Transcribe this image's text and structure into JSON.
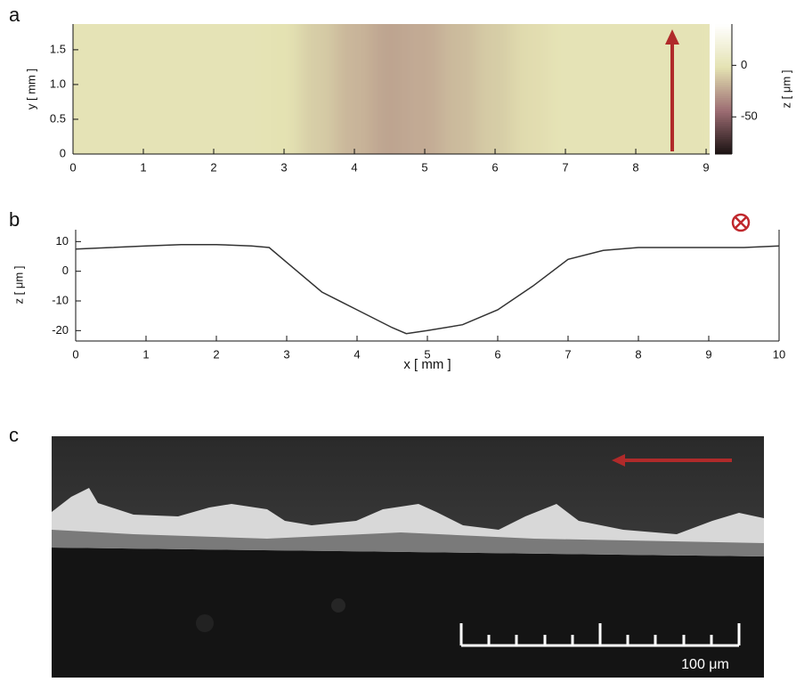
{
  "panel_labels": [
    "a",
    "b",
    "c"
  ],
  "chart_data": [
    {
      "type": "heatmap",
      "y_label": "y [ mm ]",
      "x": [
        0,
        0.5,
        1,
        1.5,
        2,
        2.5,
        3,
        3.5,
        4,
        4.5,
        5,
        5.5,
        6,
        6.5,
        7,
        7.5,
        8,
        8.5,
        9
      ],
      "values": [
        0,
        0,
        0,
        0,
        0,
        0,
        -2,
        -10,
        -18,
        -24,
        -22,
        -16,
        -10,
        -4,
        0,
        0,
        0,
        0,
        0
      ],
      "xlim": [
        0,
        9.05
      ],
      "xticks": [
        0,
        1,
        2,
        3,
        4,
        5,
        6,
        7,
        8,
        9
      ],
      "ylim": [
        0,
        1.87
      ],
      "yticks": [
        0,
        0.5,
        {
          "value": 1,
          "label": "1.0"
        },
        1.5
      ],
      "zlim": [
        -86,
        40
      ],
      "zticks": [
        0,
        -50
      ],
      "colorbar_label": "z [ μm ]",
      "colorscale": [
        "#1a1212",
        "#9c6c72",
        "#e4e2b2",
        "#ffffff"
      ]
    },
    {
      "type": "line",
      "x_label": "x [ mm ]",
      "y_label": "z [ μm ]",
      "x": [
        0,
        0.5,
        1,
        1.5,
        2,
        2.5,
        2.75,
        3,
        3.5,
        4,
        4.5,
        4.7,
        5,
        5.5,
        6,
        6.5,
        7,
        7.5,
        8,
        8.5,
        9,
        9.5,
        10
      ],
      "values": [
        7.5,
        8,
        8.5,
        9,
        9,
        8.5,
        8,
        3,
        -7,
        -13,
        -19,
        -21,
        -20,
        -18,
        -13,
        -5,
        4,
        7,
        8,
        8,
        8,
        8,
        8.5
      ],
      "color": "#333333",
      "xlim": [
        0,
        10
      ],
      "xticks": [
        0,
        1,
        2,
        3,
        4,
        5,
        6,
        7,
        8,
        9,
        10
      ],
      "ylim": [
        -23.5,
        14
      ],
      "yticks": [
        10,
        0,
        -10,
        -20
      ]
    }
  ],
  "image": {
    "scale_bar_label": "100 μm"
  }
}
